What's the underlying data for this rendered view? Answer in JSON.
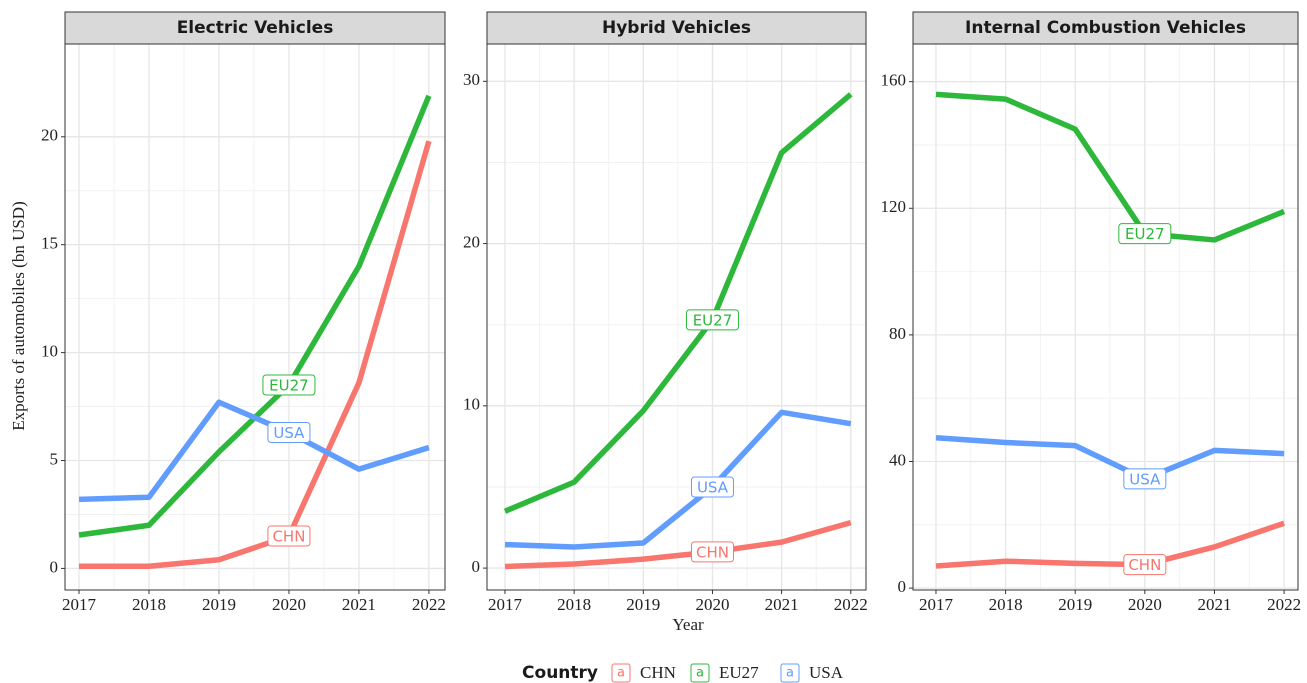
{
  "y_label": "Exports of automobiles (bn USD)",
  "x_label": "Year",
  "legend_title": "Country",
  "legend_glyph": "a",
  "chart_data": [
    {
      "type": "line",
      "title": "Electric Vehicles",
      "x": [
        2017,
        2018,
        2019,
        2020,
        2021,
        2022
      ],
      "xlim": [
        2016.8,
        2022.23
      ],
      "xticks": [
        2017,
        2018,
        2019,
        2020,
        2021,
        2022
      ],
      "ylim": [
        -1.0,
        24.3
      ],
      "yticks": [
        0,
        5,
        10,
        15,
        20
      ],
      "grid": true,
      "series": [
        {
          "name": "CHN",
          "color": "#F8766D",
          "values": [
            0.1,
            0.1,
            0.4,
            1.5,
            8.6,
            19.8
          ]
        },
        {
          "name": "EU27",
          "color": "#2DB83B",
          "values": [
            1.55,
            2.0,
            5.4,
            8.5,
            14.0,
            21.9
          ]
        },
        {
          "name": "USA",
          "color": "#619CFF",
          "values": [
            3.2,
            3.3,
            7.7,
            6.3,
            4.6,
            5.6
          ]
        }
      ]
    },
    {
      "type": "line",
      "title": "Hybrid Vehicles",
      "x": [
        2017,
        2018,
        2019,
        2020,
        2021,
        2022
      ],
      "xlim": [
        2016.74,
        2022.22
      ],
      "xticks": [
        2017,
        2018,
        2019,
        2020,
        2021,
        2022
      ],
      "ylim": [
        -1.35,
        32.3
      ],
      "yticks": [
        0,
        10,
        20,
        30
      ],
      "grid": true,
      "series": [
        {
          "name": "CHN",
          "color": "#F8766D",
          "values": [
            0.1,
            0.25,
            0.55,
            1.0,
            1.6,
            2.8
          ]
        },
        {
          "name": "EU27",
          "color": "#2DB83B",
          "values": [
            3.5,
            5.3,
            9.7,
            15.3,
            25.6,
            29.2
          ]
        },
        {
          "name": "USA",
          "color": "#619CFF",
          "values": [
            1.45,
            1.3,
            1.55,
            5.0,
            9.6,
            8.9
          ]
        }
      ]
    },
    {
      "type": "line",
      "title": "Internal Combustion Vehicles",
      "x": [
        2017,
        2018,
        2019,
        2020,
        2021,
        2022
      ],
      "xlim": [
        2016.67,
        2022.2
      ],
      "xticks": [
        2017,
        2018,
        2019,
        2020,
        2021,
        2022
      ],
      "ylim": [
        -0.6,
        171.9
      ],
      "yticks": [
        0,
        40,
        80,
        120,
        160
      ],
      "grid": true,
      "series": [
        {
          "name": "CHN",
          "color": "#F8766D",
          "values": [
            7,
            8.5,
            7.8,
            7.4,
            13,
            20.5
          ]
        },
        {
          "name": "EU27",
          "color": "#2DB83B",
          "values": [
            156,
            154.5,
            145,
            112,
            110,
            119
          ]
        },
        {
          "name": "USA",
          "color": "#619CFF",
          "values": [
            47.5,
            46,
            45,
            34.5,
            43.5,
            42.5
          ]
        }
      ]
    }
  ]
}
